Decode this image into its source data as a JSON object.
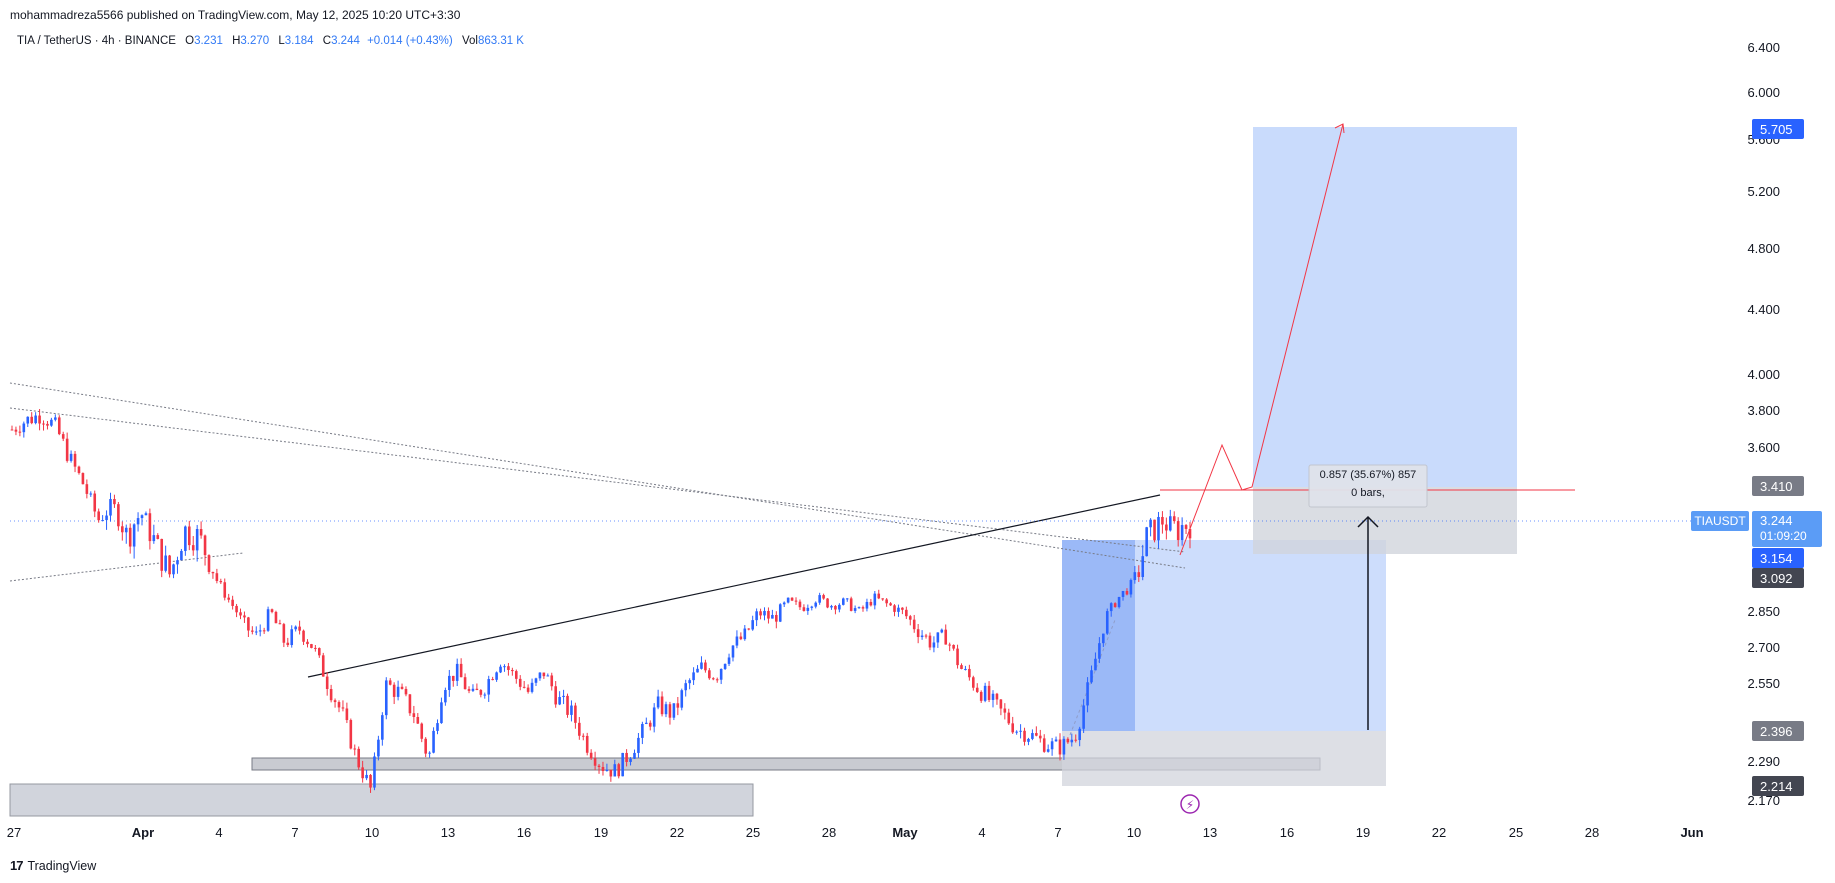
{
  "header": {
    "published": "mohammadreza5566 published on TradingView.com, May 12, 2025 10:20 UTC+3:30",
    "symbol": "TIA / TetherUS · 4h · BINANCE",
    "o_label": "O",
    "o_value": "3.231",
    "h_label": "H",
    "h_value": "3.270",
    "l_label": "L",
    "l_value": "3.184",
    "c_label": "C",
    "c_value": "3.244",
    "change": "+0.014 (+0.43%)",
    "vol_label": "Vol",
    "vol_value": "863.31 K"
  },
  "footer": {
    "brand": "TradingView",
    "logo": "17"
  },
  "colors": {
    "up": "#089981",
    "down": "#f23645",
    "candle_up": "#2962ff",
    "zone_blue": "#bcd2fb",
    "zone_gray": "#d1d4dc",
    "target_line": "#f23645",
    "price_badge_blue": "#2962ff",
    "price_badge_gray": "#787b86",
    "price_badge_dark": "#434651"
  },
  "chart_data": {
    "type": "candlestick",
    "timeframe": "4h",
    "y_ticks": [
      "6.400",
      "6.000",
      "5.600",
      "5.200",
      "4.800",
      "4.400",
      "4.000",
      "3.800",
      "3.600",
      "2.850",
      "2.700",
      "2.550",
      "2.290",
      "2.170"
    ],
    "x_ticks": [
      "27",
      "Apr",
      "4",
      "7",
      "10",
      "13",
      "16",
      "19",
      "22",
      "25",
      "28",
      "May",
      "4",
      "7",
      "10",
      "13",
      "16",
      "19",
      "22",
      "25",
      "28",
      "Jun"
    ],
    "price_labels": [
      {
        "value": "5.705",
        "style": "blue"
      },
      {
        "value": "3.410",
        "style": "gray"
      },
      {
        "value": "3.244",
        "style": "ticker",
        "ticker": "TIAUSDT",
        "countdown": "01:09:20"
      },
      {
        "value": "3.154",
        "style": "blue"
      },
      {
        "value": "3.092",
        "style": "dark"
      },
      {
        "value": "2.396",
        "style": "gray"
      },
      {
        "value": "2.214",
        "style": "dark"
      }
    ],
    "measure": {
      "text": "0.857 (35.67%) 857",
      "bars": "0 bars,"
    },
    "series_close_path": [
      3.7,
      3.75,
      3.78,
      3.72,
      3.55,
      3.42,
      3.25,
      3.32,
      3.2,
      3.28,
      3.18,
      3.1,
      3.22,
      3.2,
      3.12,
      2.95,
      2.8,
      2.75,
      2.85,
      2.72,
      2.78,
      2.7,
      2.55,
      2.45,
      2.3,
      2.2,
      2.55,
      2.52,
      2.45,
      2.3,
      2.55,
      2.6,
      2.5,
      2.55,
      2.65,
      2.58,
      2.52,
      2.6,
      2.5,
      2.45,
      2.35,
      2.28,
      2.26,
      2.32,
      2.4,
      2.48,
      2.45,
      2.55,
      2.62,
      2.58,
      2.7,
      2.75,
      2.85,
      2.82,
      2.92,
      2.88,
      2.95,
      2.9,
      2.92,
      2.85,
      2.95,
      2.9,
      2.85,
      2.78,
      2.72,
      2.75,
      2.62,
      2.55,
      2.5,
      2.45,
      2.4,
      2.38,
      2.35,
      2.34,
      2.38,
      2.55,
      2.8,
      2.95,
      3.05,
      3.2,
      3.25,
      3.22,
      3.24
    ]
  }
}
